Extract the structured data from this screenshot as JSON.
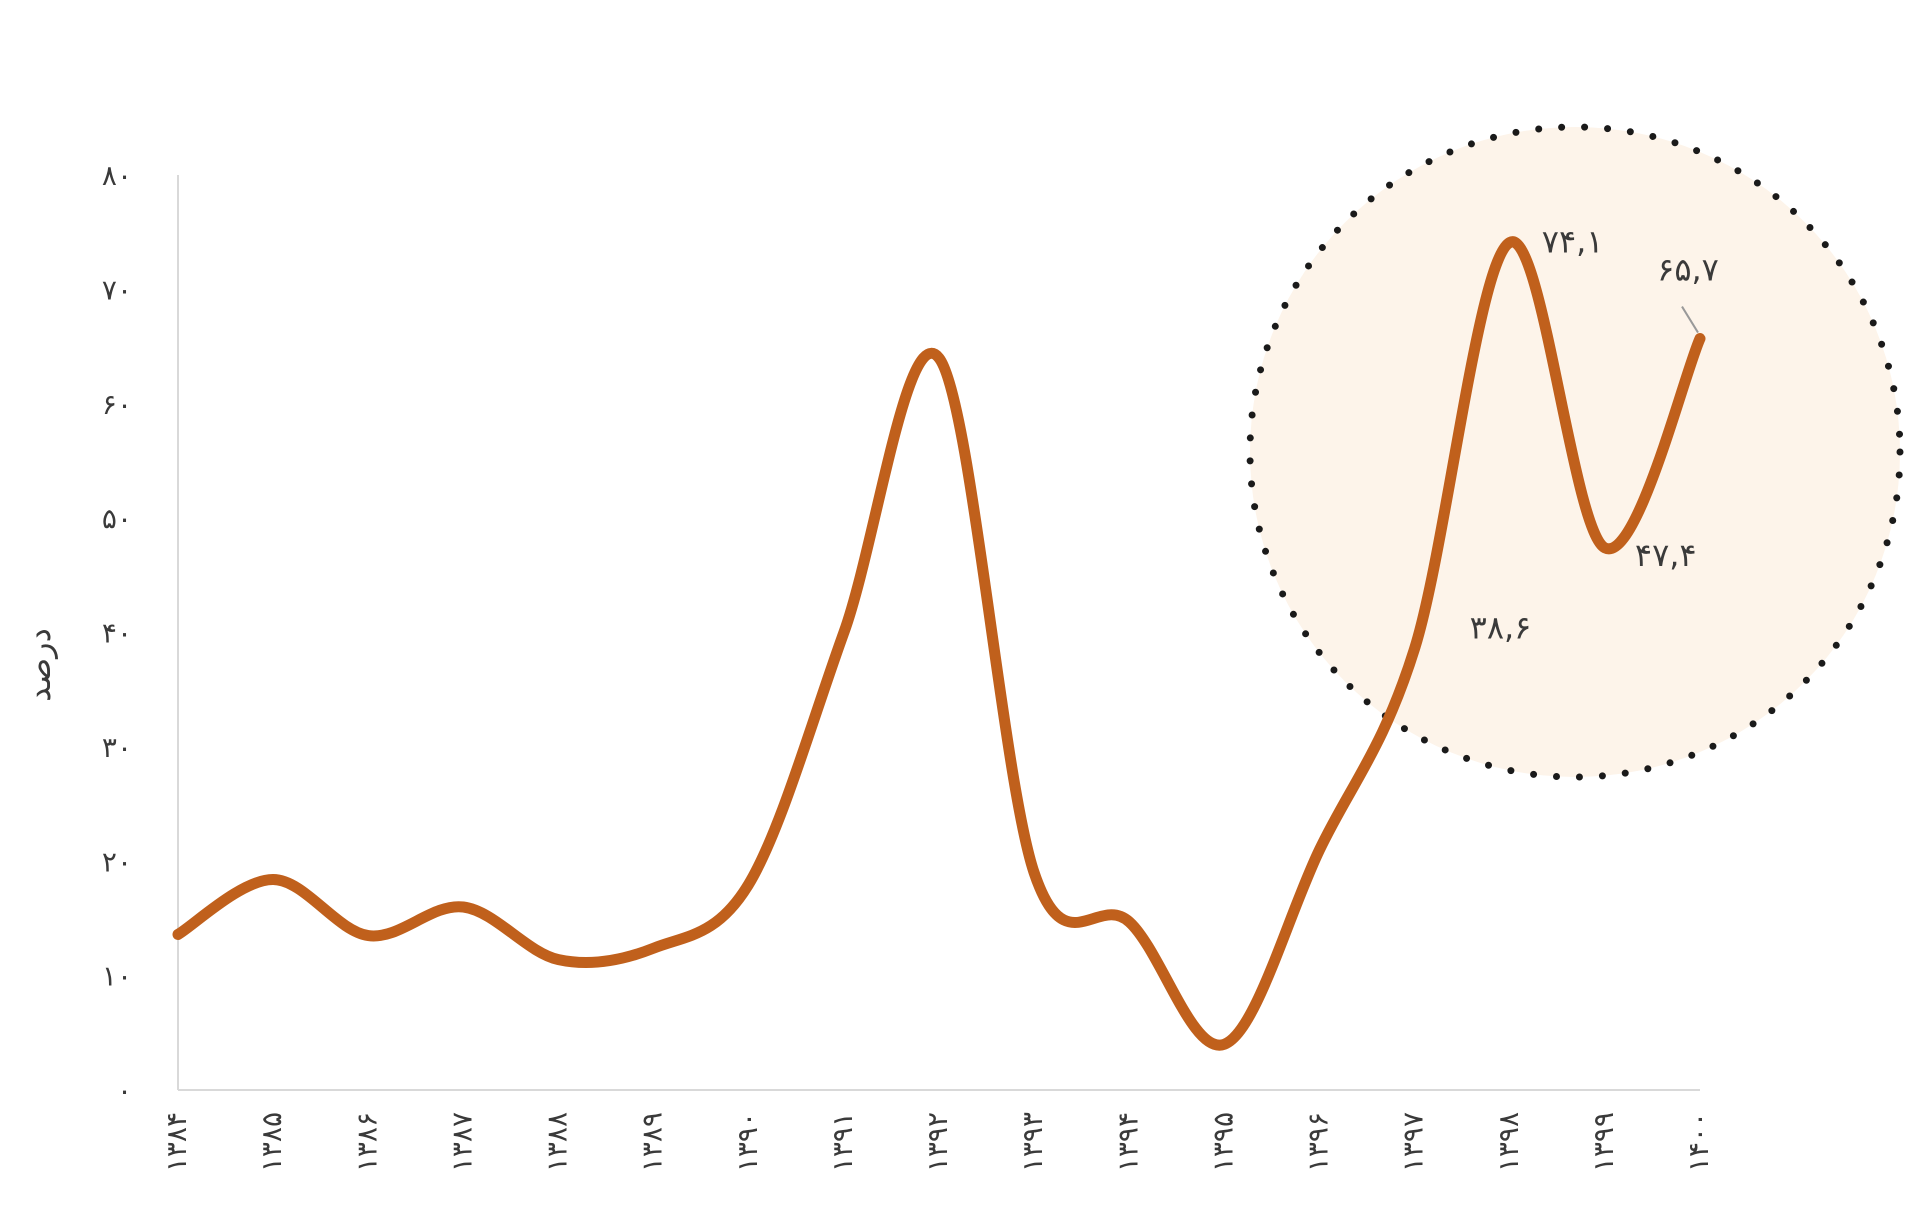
{
  "chart_data": {
    "type": "line",
    "ylabel": "درصد",
    "ylim": [
      0,
      80
    ],
    "y_ticks": [
      0,
      10,
      20,
      30,
      40,
      50,
      60,
      70,
      80
    ],
    "y_tick_labels": [
      "۰",
      "۱۰",
      "۲۰",
      "۳۰",
      "۴۰",
      "۵۰",
      "۶۰",
      "۷۰",
      "۸۰"
    ],
    "categories": [
      "۱۳۸۴",
      "۱۳۸۵",
      "۱۳۸۶",
      "۱۳۸۷",
      "۱۳۸۸",
      "۱۳۸۹",
      "۱۳۹۰",
      "۱۳۹۱",
      "۱۳۹۲",
      "۱۳۹۳",
      "۱۳۹۴",
      "۱۳۹۵",
      "۱۳۹۶",
      "۱۳۹۷",
      "۱۳۹۸",
      "۱۳۹۹",
      "۱۴۰۰"
    ],
    "series": [
      {
        "values": [
          13.6,
          18.4,
          13.5,
          16.0,
          11.4,
          12.4,
          18.0,
          40.0,
          64.0,
          19.0,
          14.7,
          4.0,
          21.0,
          38.6,
          74.1,
          47.4,
          65.7
        ]
      }
    ],
    "data_labels": [
      {
        "index": 13,
        "text": "۳۸,۶"
      },
      {
        "index": 14,
        "text": "۷۴,۱"
      },
      {
        "index": 15,
        "text": "۴۷,۴"
      },
      {
        "index": 16,
        "text": "۶۵,۷"
      }
    ],
    "grid": false,
    "line_color": "#c0601c",
    "highlight_fill": "#fdf4ea",
    "highlight_border_color": "#1a1a1a"
  }
}
